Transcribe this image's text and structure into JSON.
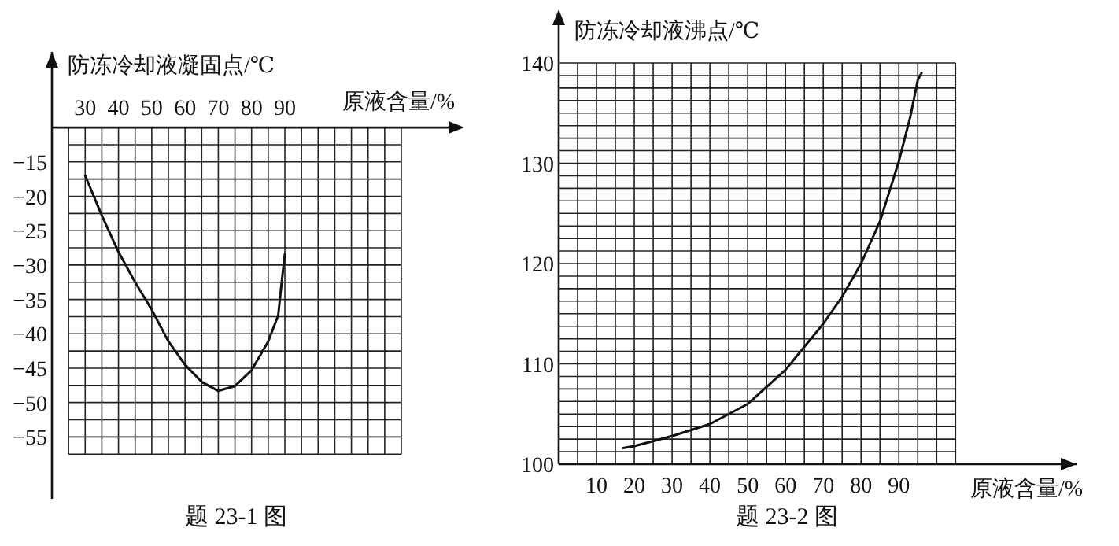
{
  "chart_data": [
    {
      "type": "line",
      "title": "题 23-1 图",
      "ylabel": "防冻冷却液凝固点/℃",
      "xlabel": "原液含量/%",
      "grid": true,
      "marker": "none",
      "line_style": "solid",
      "xlim": [
        20,
        125
      ],
      "ylim": [
        -64,
        1
      ],
      "xticks": [
        {
          "value": 25,
          "label": null
        },
        30,
        {
          "value": 35,
          "label": null
        },
        40,
        {
          "value": 45,
          "label": null
        },
        50,
        {
          "value": 55,
          "label": null
        },
        60,
        {
          "value": 65,
          "label": null
        },
        70,
        {
          "value": 75,
          "label": null
        },
        80,
        {
          "value": 85,
          "label": null
        },
        90,
        {
          "value": 95,
          "label": null
        },
        {
          "value": 100,
          "label": null
        },
        {
          "value": 105,
          "label": null
        },
        {
          "value": 110,
          "label": null
        },
        {
          "value": 115,
          "label": null
        },
        {
          "value": 120,
          "label": null
        },
        {
          "value": 125,
          "label": null
        }
      ],
      "yticks": [
        {
          "value": -10,
          "label": null
        },
        {
          "value": -12.5,
          "label": null
        },
        -15,
        {
          "value": -17.5,
          "label": null
        },
        -20,
        {
          "value": -22.5,
          "label": null
        },
        -25,
        {
          "value": -27.5,
          "label": null
        },
        -30,
        {
          "value": -32.5,
          "label": null
        },
        -35,
        {
          "value": -37.5,
          "label": null
        },
        -40,
        {
          "value": -42.5,
          "label": null
        },
        -45,
        {
          "value": -47.5,
          "label": null
        },
        -50,
        {
          "value": -52.5,
          "label": null
        },
        -55,
        {
          "value": -57.5,
          "label": null
        }
      ],
      "series": [
        {
          "color": "#111111",
          "x": [
            30,
            35,
            40,
            45,
            50,
            55,
            60,
            65,
            70,
            75,
            80,
            85,
            88,
            89,
            90
          ],
          "values": [
            -17,
            -22.8,
            -28.1,
            -32.5,
            -36.5,
            -41.1,
            -44.5,
            -47,
            -48.3,
            -47.6,
            -45.3,
            -41.1,
            -37.3,
            -32.7,
            -28.4
          ]
        }
      ]
    },
    {
      "type": "line",
      "title": "题 23-2 图",
      "ylabel": "防冻冷却液沸点/℃",
      "xlabel": "原液含量/%",
      "grid": true,
      "marker": "none",
      "line_style": "solid",
      "xlim": [
        0,
        137
      ],
      "ylim": [
        100,
        140
      ],
      "xticks": [
        {
          "value": 0,
          "label": null
        },
        {
          "value": 5,
          "label": null
        },
        10,
        {
          "value": 15,
          "label": null
        },
        20,
        {
          "value": 25,
          "label": null
        },
        30,
        {
          "value": 35,
          "label": null
        },
        40,
        {
          "value": 45,
          "label": null
        },
        50,
        {
          "value": 55,
          "label": null
        },
        60,
        {
          "value": 65,
          "label": null
        },
        70,
        {
          "value": 75,
          "label": null
        },
        80,
        {
          "value": 85,
          "label": null
        },
        90,
        {
          "value": 95,
          "label": null
        },
        {
          "value": 100,
          "label": null
        },
        {
          "value": 105,
          "label": null
        }
      ],
      "yticks": [
        100,
        {
          "value": 101.25,
          "label": null
        },
        {
          "value": 102.5,
          "label": null
        },
        {
          "value": 103.75,
          "label": null
        },
        {
          "value": 105,
          "label": null
        },
        {
          "value": 106.25,
          "label": null
        },
        {
          "value": 107.5,
          "label": null
        },
        {
          "value": 108.75,
          "label": null
        },
        110,
        {
          "value": 111.25,
          "label": null
        },
        {
          "value": 112.5,
          "label": null
        },
        {
          "value": 113.75,
          "label": null
        },
        {
          "value": 115,
          "label": null
        },
        {
          "value": 116.25,
          "label": null
        },
        {
          "value": 117.5,
          "label": null
        },
        {
          "value": 118.75,
          "label": null
        },
        120,
        {
          "value": 121.25,
          "label": null
        },
        {
          "value": 122.5,
          "label": null
        },
        {
          "value": 123.75,
          "label": null
        },
        {
          "value": 125,
          "label": null
        },
        {
          "value": 126.25,
          "label": null
        },
        {
          "value": 127.5,
          "label": null
        },
        {
          "value": 128.75,
          "label": null
        },
        130,
        {
          "value": 131.25,
          "label": null
        },
        {
          "value": 132.5,
          "label": null
        },
        {
          "value": 133.75,
          "label": null
        },
        {
          "value": 135,
          "label": null
        },
        {
          "value": 136.25,
          "label": null
        },
        {
          "value": 137.5,
          "label": null
        },
        {
          "value": 138.75,
          "label": null
        },
        140
      ],
      "series": [
        {
          "color": "#111111",
          "x": [
            17,
            20,
            30,
            40,
            50,
            60,
            70,
            75,
            80,
            85,
            90,
            93,
            95,
            96
          ],
          "values": [
            101.6,
            101.8,
            102.8,
            104,
            106,
            109.4,
            114,
            116.7,
            120,
            124.2,
            130.2,
            134.6,
            138.3,
            139
          ]
        }
      ]
    }
  ]
}
